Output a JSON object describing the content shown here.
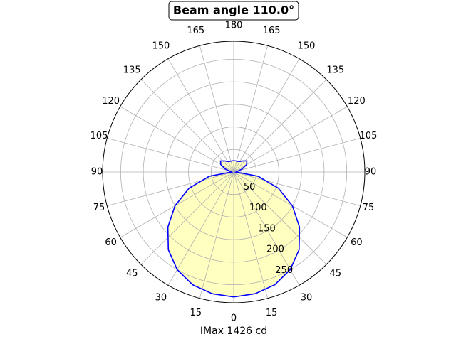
{
  "chart_data": {
    "type": "polar",
    "title": "Beam angle 110.0°",
    "xlabel": "IMax 1426 cd",
    "theta": [
      0,
      10,
      20,
      30,
      40,
      50,
      60,
      70,
      80,
      90,
      100,
      110,
      120,
      130,
      140,
      150,
      160,
      170,
      180,
      190,
      200,
      210,
      220,
      230,
      240,
      250,
      260,
      270,
      280,
      290,
      300,
      310,
      320,
      330,
      340,
      350,
      360
    ],
    "values": [
      277,
      274,
      266,
      250,
      225,
      190,
      150,
      105,
      55,
      5,
      8,
      20,
      33,
      38,
      32,
      27,
      25,
      25,
      25,
      25,
      25,
      27,
      32,
      38,
      33,
      20,
      8,
      5,
      55,
      105,
      150,
      190,
      225,
      250,
      266,
      274,
      277
    ],
    "line_color": "#0000ff",
    "fill_color": "#ffffc0",
    "rlim": [
      0,
      290
    ],
    "rticks": [
      50,
      100,
      150,
      200,
      250
    ],
    "thetaticks": [
      {
        "value": 0,
        "label": "0"
      },
      {
        "value": 15,
        "label": "15"
      },
      {
        "value": 30,
        "label": "30"
      },
      {
        "value": 45,
        "label": "45"
      },
      {
        "value": 60,
        "label": "60"
      },
      {
        "value": 75,
        "label": "75"
      },
      {
        "value": 90,
        "label": "90"
      },
      {
        "value": 105,
        "label": "105"
      },
      {
        "value": 120,
        "label": "120"
      },
      {
        "value": 135,
        "label": "135"
      },
      {
        "value": 150,
        "label": "150"
      },
      {
        "value": 165,
        "label": "165"
      },
      {
        "value": 180,
        "label": "180"
      },
      {
        "value": 195,
        "label": "165"
      },
      {
        "value": 210,
        "label": "150"
      },
      {
        "value": 225,
        "label": "135"
      },
      {
        "value": 240,
        "label": "120"
      },
      {
        "value": 255,
        "label": "105"
      },
      {
        "value": 270,
        "label": "90"
      },
      {
        "value": 285,
        "label": "75"
      },
      {
        "value": 300,
        "label": "60"
      },
      {
        "value": 315,
        "label": "45"
      },
      {
        "value": 330,
        "label": "30"
      },
      {
        "value": 345,
        "label": "15"
      }
    ],
    "grid": true
  }
}
